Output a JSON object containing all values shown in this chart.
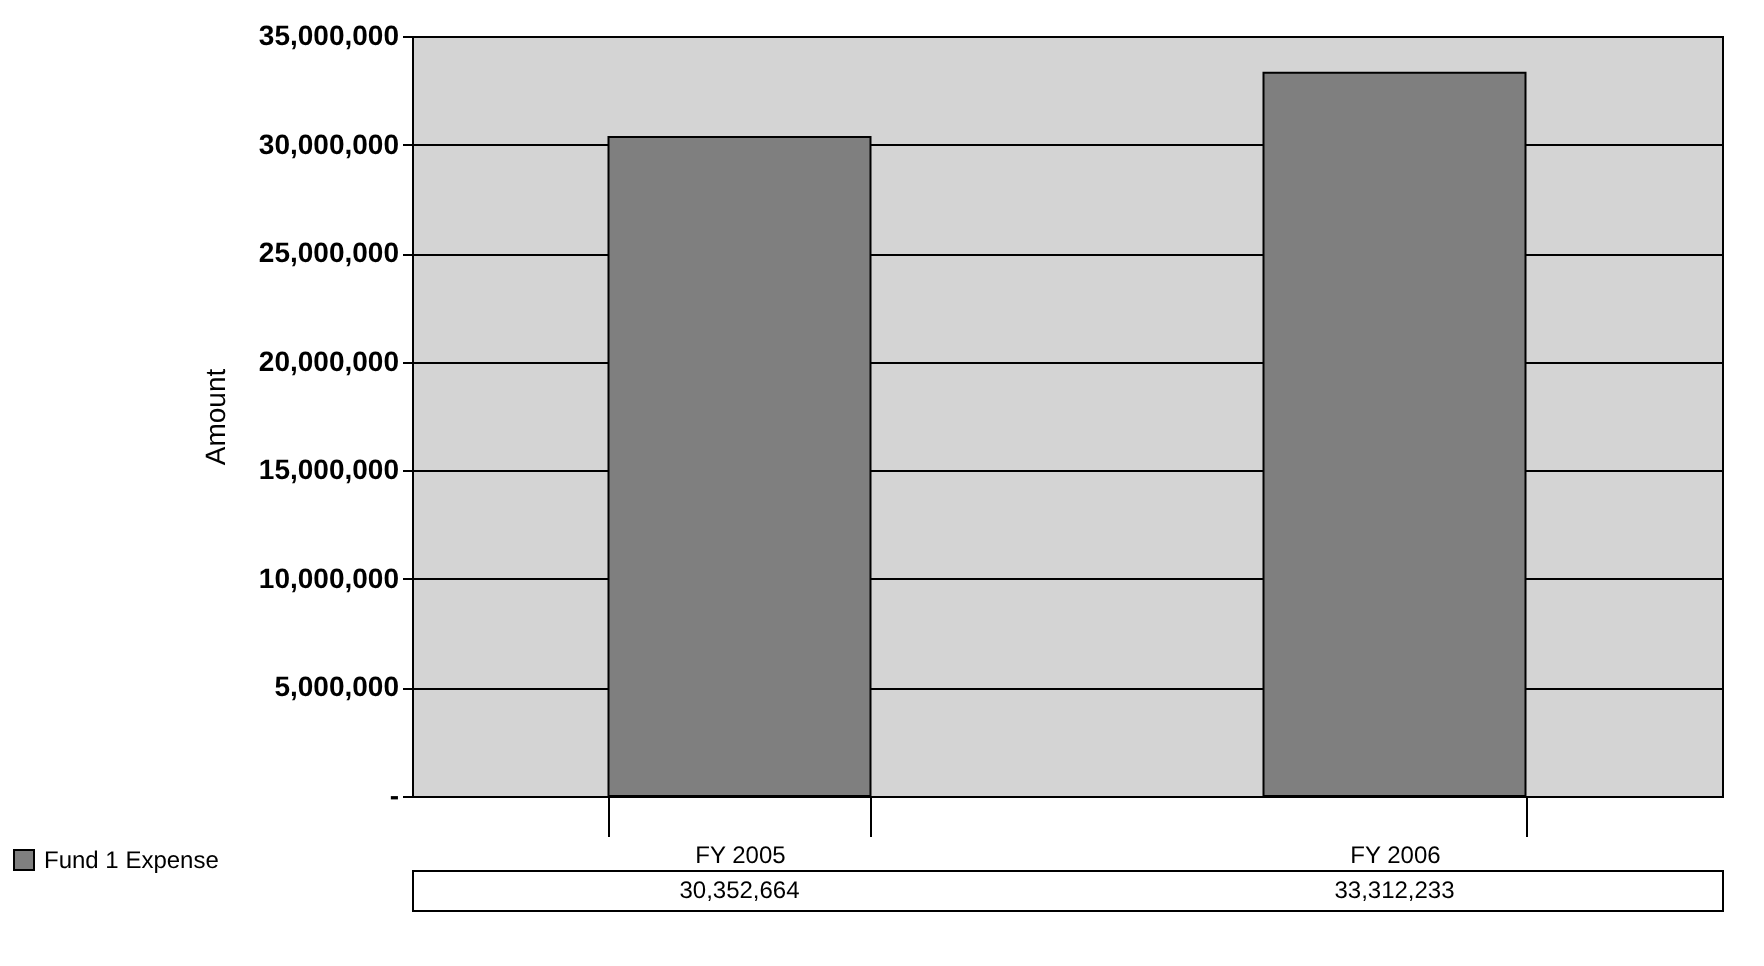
{
  "chart_data": {
    "type": "bar",
    "ylabel": "Amount",
    "categories": [
      "FY 2005",
      "FY 2006"
    ],
    "series": [
      {
        "name": "Fund 1 Expense",
        "color": "#7f7f7f",
        "values": [
          30352664,
          33312233
        ],
        "value_labels": [
          "30,352,664",
          "33,312,233"
        ]
      }
    ],
    "ylim": [
      0,
      35000000
    ],
    "yticks": [
      {
        "value": 0,
        "label": "-"
      },
      {
        "value": 5000000,
        "label": "5,000,000"
      },
      {
        "value": 10000000,
        "label": "10,000,000"
      },
      {
        "value": 15000000,
        "label": "15,000,000"
      },
      {
        "value": 20000000,
        "label": "20,000,000"
      },
      {
        "value": 25000000,
        "label": "25,000,000"
      },
      {
        "value": 30000000,
        "label": "30,000,000"
      },
      {
        "value": 35000000,
        "label": "35,000,000"
      }
    ],
    "grid": "y",
    "legend": "bottom left"
  }
}
